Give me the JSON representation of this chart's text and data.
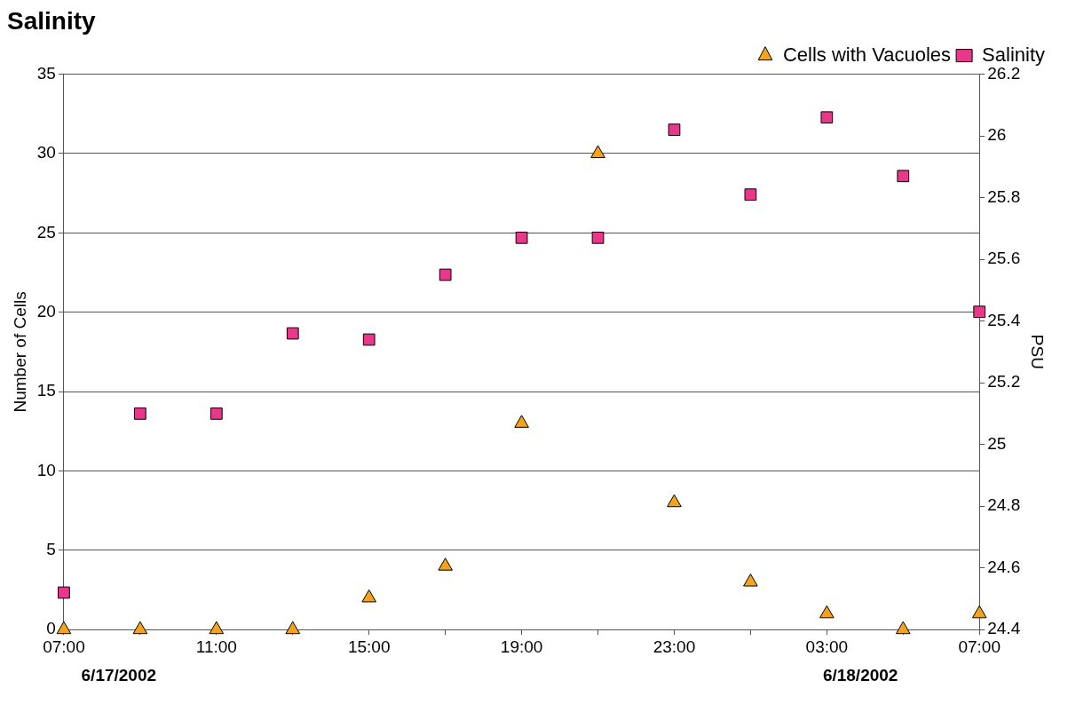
{
  "chart_data": {
    "type": "scatter",
    "title": "Salinity",
    "ylabel": "Number of Cells",
    "y2label": "PSU",
    "x": [
      "2002-06-17T07:00",
      "2002-06-17T09:00",
      "2002-06-17T11:00",
      "2002-06-17T13:00",
      "2002-06-17T15:00",
      "2002-06-17T17:00",
      "2002-06-17T19:00",
      "2002-06-17T21:00",
      "2002-06-17T23:00",
      "2002-06-18T01:00",
      "2002-06-18T03:00",
      "2002-06-18T05:00",
      "2002-06-18T07:00"
    ],
    "series": [
      {
        "name": "Cells with Vacuoles",
        "color": "#f5a31a",
        "marker": "triangle",
        "values": [
          0,
          0,
          0,
          0,
          2,
          4,
          13,
          30,
          8,
          3,
          1,
          0,
          1
        ]
      },
      {
        "name": "Salinity",
        "color": "#e8388a",
        "marker": "square",
        "axis": "y2",
        "values": [
          24.52,
          25.1,
          25.1,
          25.36,
          25.34,
          25.55,
          25.67,
          25.67,
          26.02,
          25.81,
          26.06,
          25.87,
          25.43
        ]
      }
    ],
    "xlim": [
      "2002-06-17T07:00",
      "2002-06-18T07:00"
    ],
    "xticks": [
      {
        "value": "2002-06-17T07:00",
        "label": "07:00"
      },
      {
        "value": "2002-06-17T09:00",
        "label": null
      },
      {
        "value": "2002-06-17T11:00",
        "label": "11:00"
      },
      {
        "value": "2002-06-17T13:00",
        "label": null
      },
      {
        "value": "2002-06-17T15:00",
        "label": "15:00"
      },
      {
        "value": "2002-06-17T17:00",
        "label": null
      },
      {
        "value": "2002-06-17T19:00",
        "label": "19:00"
      },
      {
        "value": "2002-06-17T21:00",
        "label": null
      },
      {
        "value": "2002-06-17T23:00",
        "label": "23:00"
      },
      {
        "value": "2002-06-18T01:00",
        "label": null
      },
      {
        "value": "2002-06-18T03:00",
        "label": "03:00"
      },
      {
        "value": "2002-06-18T05:00",
        "label": null
      },
      {
        "value": "2002-06-18T07:00",
        "label": "07:00"
      }
    ],
    "ylim": [
      0,
      35
    ],
    "yticks": [
      0,
      5,
      10,
      15,
      20,
      25,
      30,
      35
    ],
    "y2lim": [
      24.4,
      26.2
    ],
    "y2ticks": [
      24.4,
      24.6,
      24.8,
      25,
      25.2,
      25.4,
      25.6,
      25.8,
      26,
      26.2
    ],
    "annotations": [
      "6/17/2002",
      "6/18/2002"
    ],
    "grid": "y",
    "legend": "top right"
  }
}
